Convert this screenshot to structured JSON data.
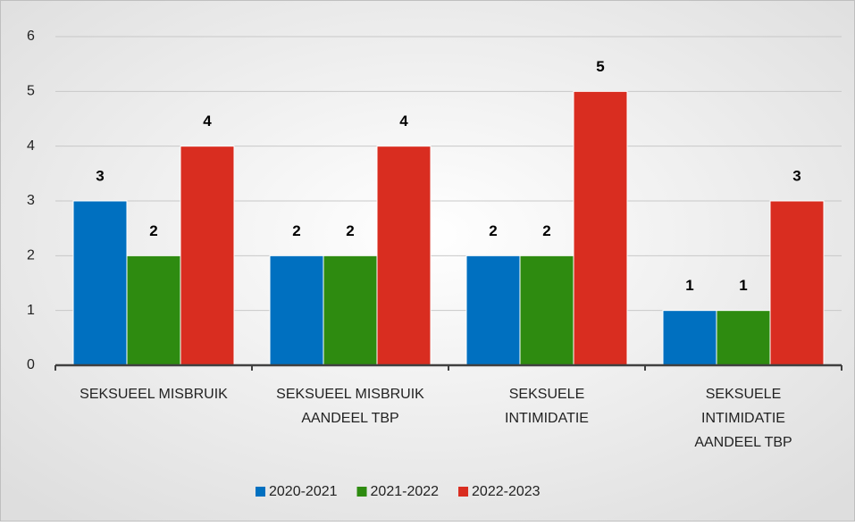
{
  "chart_data": {
    "type": "bar",
    "categories": [
      "SEKSUEEL MISBRUIK",
      "SEKSUEEL MISBRUIK AANDEEL TBP",
      "SEKSUELE INTIMIDATIE",
      "SEKSUELE INTIMIDATIE AANDEEL TBP"
    ],
    "series": [
      {
        "name": "2020-2021",
        "color": "#0070c0",
        "values": [
          3,
          2,
          2,
          1
        ]
      },
      {
        "name": "2021-2022",
        "color": "#2e8b10",
        "values": [
          2,
          2,
          2,
          1
        ]
      },
      {
        "name": "2022-2023",
        "color": "#d92d20",
        "values": [
          4,
          4,
          5,
          3
        ]
      }
    ],
    "ylim": [
      0,
      6
    ],
    "yticks": [
      0,
      1,
      2,
      3,
      4,
      5,
      6
    ],
    "grid": true,
    "legend": "bottom"
  }
}
